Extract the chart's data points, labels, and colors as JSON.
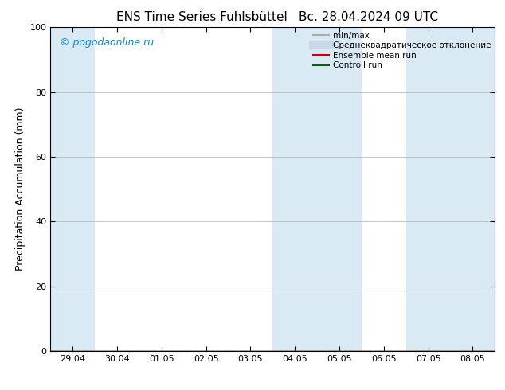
{
  "title": "ENS Time Series Fuhlsbüttel",
  "title_right": "Вс. 28.04.2024 09 UTC",
  "ylabel": "Precipitation Accumulation (mm)",
  "watermark": "© pogodaonline.ru",
  "x_tick_labels": [
    "29.04",
    "30.04",
    "01.05",
    "02.05",
    "03.05",
    "04.05",
    "05.05",
    "06.05",
    "07.05",
    "08.05"
  ],
  "x_tick_positions": [
    0,
    1,
    2,
    3,
    4,
    5,
    6,
    7,
    8,
    9
  ],
  "ylim": [
    0,
    100
  ],
  "xlim": [
    -0.5,
    9.5
  ],
  "y_ticks": [
    0,
    20,
    40,
    60,
    80,
    100
  ],
  "shaded_regions": [
    {
      "x_start": -0.5,
      "x_end": 0.5,
      "color": "#daeaf5"
    },
    {
      "x_start": 4.5,
      "x_end": 5.5,
      "color": "#daeaf5"
    },
    {
      "x_start": 5.5,
      "x_end": 6.5,
      "color": "#daeaf5"
    },
    {
      "x_start": 7.5,
      "x_end": 8.5,
      "color": "#daeaf5"
    },
    {
      "x_start": 8.5,
      "x_end": 9.5,
      "color": "#daeaf5"
    }
  ],
  "legend_entries": [
    {
      "label": "min/max",
      "color": "#aaaaaa",
      "lw": 1.5
    },
    {
      "label": "Среднеквадратическое отклонение",
      "color": "#c8d8e8",
      "lw": 8
    },
    {
      "label": "Ensemble mean run",
      "color": "#cc0000",
      "lw": 1.5
    },
    {
      "label": "Controll run",
      "color": "#006600",
      "lw": 1.5
    }
  ],
  "background_color": "#ffffff",
  "plot_bg_color": "#ffffff",
  "grid_color": "#bbbbbb",
  "watermark_color": "#0088cc",
  "title_fontsize": 11,
  "tick_fontsize": 8,
  "ylabel_fontsize": 9
}
